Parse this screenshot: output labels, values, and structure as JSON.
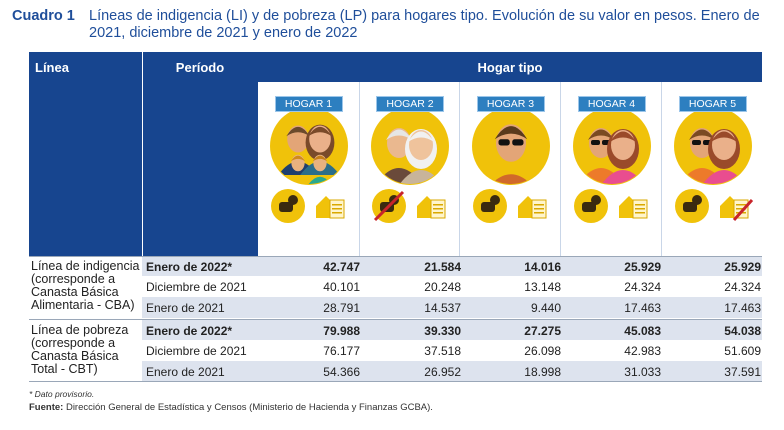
{
  "caption": {
    "number": "Cuadro 1",
    "title": "Líneas de indigencia (LI) y de pobreza (LP) para hogares tipo. Evolución de su valor en pesos. Enero de 2021, diciembre de 2021 y enero de 2022"
  },
  "header": {
    "linea": "Línea",
    "periodo": "Período",
    "hogar_tipo": "Hogar tipo"
  },
  "hogares": [
    {
      "label": "HOGAR 1",
      "icon": "family-of-four-icon"
    },
    {
      "label": "HOGAR 2",
      "icon": "elderly-couple-icon"
    },
    {
      "label": "HOGAR 3",
      "icon": "single-man-icon"
    },
    {
      "label": "HOGAR 4",
      "icon": "couple-icon"
    },
    {
      "label": "HOGAR 5",
      "icon": "couple-icon"
    }
  ],
  "groups": [
    {
      "label": "Línea de indigencia (corresponde a Canasta Básica Alimentaria - CBA)",
      "rows": [
        {
          "periodo": "Enero de 2022*",
          "bold": true,
          "values": [
            "42.747",
            "21.584",
            "14.016",
            "25.929",
            "25.929"
          ]
        },
        {
          "periodo": "Diciembre de 2021",
          "bold": false,
          "values": [
            "40.101",
            "20.248",
            "13.148",
            "24.324",
            "24.324"
          ]
        },
        {
          "periodo": "Enero de 2021",
          "bold": false,
          "values": [
            "28.791",
            "14.537",
            "9.440",
            "17.463",
            "17.463"
          ]
        }
      ]
    },
    {
      "label": "Línea de pobreza (corresponde a Canasta Básica Total - CBT)",
      "rows": [
        {
          "periodo": "Enero de 2022*",
          "bold": true,
          "values": [
            "79.988",
            "39.330",
            "27.275",
            "45.083",
            "54.038"
          ]
        },
        {
          "periodo": "Diciembre de 2021",
          "bold": false,
          "values": [
            "76.177",
            "37.518",
            "26.098",
            "42.983",
            "51.609"
          ]
        },
        {
          "periodo": "Enero de 2021",
          "bold": false,
          "values": [
            "54.366",
            "26.952",
            "18.998",
            "31.033",
            "37.591"
          ]
        }
      ]
    }
  ],
  "footnote": "* Dato provisorio.",
  "source": {
    "label": "Fuente:",
    "text": "Dirección General de Estadística y Censos (Ministerio de Hacienda y Finanzas GCBA)."
  },
  "colors": {
    "header_blue": "#17458f",
    "badge_blue": "#2d7fc0",
    "circle_yellow": "#f0c20a",
    "row_shade": "#dde3ee"
  }
}
